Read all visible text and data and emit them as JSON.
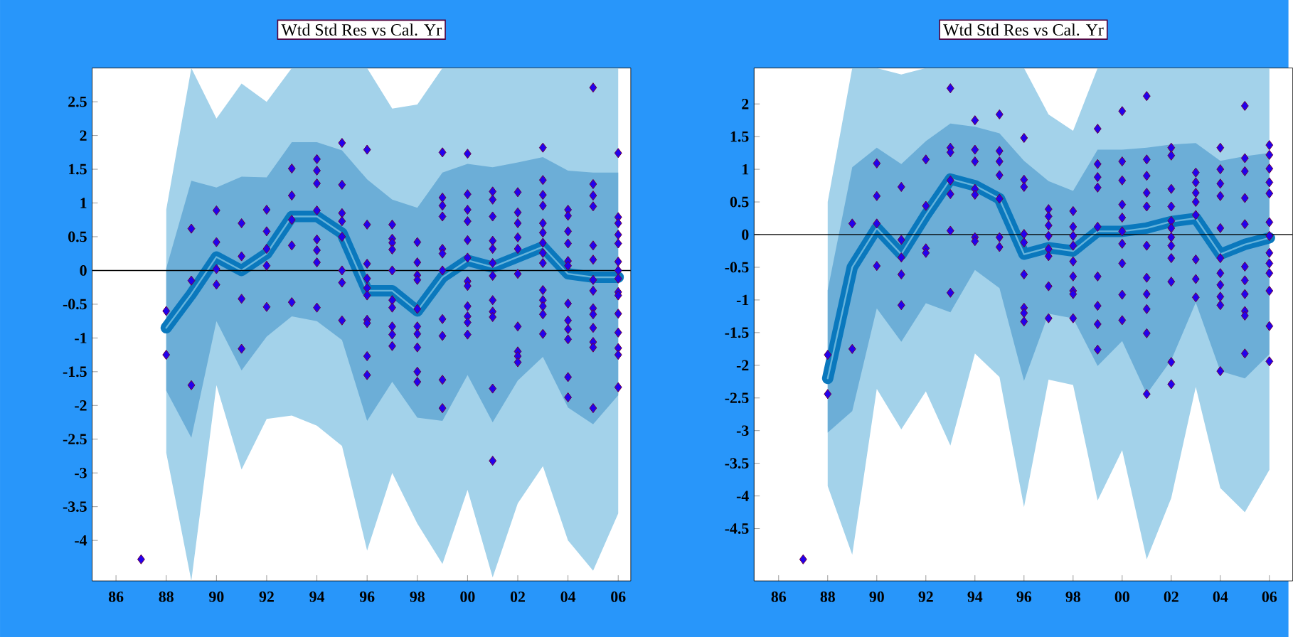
{
  "chart_data": [
    {
      "type": "scatter",
      "title": "Wtd Std Res vs Cal. Yr",
      "xlim": [
        1985.05,
        2006.5
      ],
      "ylim": [
        -4.6,
        3.0
      ],
      "xticks": [
        {
          "value": 1986,
          "label": "86"
        },
        {
          "value": 1988,
          "label": "88"
        },
        {
          "value": 1990,
          "label": "90"
        },
        {
          "value": 1992,
          "label": "92"
        },
        {
          "value": 1994,
          "label": "94"
        },
        {
          "value": 1996,
          "label": "96"
        },
        {
          "value": 1998,
          "label": "98"
        },
        {
          "value": 2000,
          "label": "00"
        },
        {
          "value": 2002,
          "label": "02"
        },
        {
          "value": 2004,
          "label": "04"
        },
        {
          "value": 2006,
          "label": "06"
        }
      ],
      "yticks": [
        -4,
        -3.5,
        -3,
        -2.5,
        -2,
        -1.5,
        -1,
        -0.5,
        0,
        0.5,
        1,
        1.5,
        2,
        2.5
      ],
      "ref_lines": [
        {
          "axis": "y",
          "value": 0,
          "color": "#000000"
        }
      ],
      "series": [
        {
          "type": "line",
          "color": "#66b4dc",
          "x": [
            1988,
            1989,
            1990,
            1991,
            1992,
            1993,
            1994,
            1995,
            1996,
            1997,
            1998,
            1999,
            2000,
            2001,
            2002,
            2003,
            2004,
            2005,
            2006
          ],
          "values": [
            -0.85,
            -0.35,
            0.2,
            0.0,
            0.25,
            0.8,
            0.8,
            0.55,
            -0.3,
            -0.3,
            -0.6,
            -0.1,
            0.15,
            0.05,
            0.2,
            0.35,
            -0.05,
            -0.1,
            -0.1
          ],
          "upper": [
            0.9,
            3.0,
            2.25,
            2.77,
            2.5,
            3.0,
            3.0,
            3.0,
            3.0,
            2.4,
            2.46,
            3.0,
            3.0,
            3.0,
            3.0,
            3.0,
            3.0,
            3.0,
            3.0
          ],
          "lower": [
            -2.7,
            -4.6,
            -1.7,
            -2.95,
            -2.2,
            -2.15,
            -2.3,
            -2.6,
            -4.15,
            -3.0,
            -3.75,
            -4.35,
            -3.25,
            -4.55,
            -3.45,
            -2.9,
            -4.0,
            -4.45,
            -3.6
          ]
        },
        {
          "type": "line",
          "color": "#0a78bd",
          "x": [
            1988,
            1989,
            1990,
            1991,
            1992,
            1993,
            1994,
            1995,
            1996,
            1997,
            1998,
            1999,
            2000,
            2001,
            2002,
            2003,
            2004,
            2005,
            2006
          ],
          "values": [
            -0.85,
            -0.35,
            0.2,
            0.0,
            0.25,
            0.8,
            0.8,
            0.55,
            -0.3,
            -0.3,
            -0.6,
            -0.1,
            0.15,
            0.05,
            0.2,
            0.35,
            -0.05,
            -0.1,
            -0.1
          ],
          "lower": [
            -1.78,
            -2.48,
            -0.75,
            -1.48,
            -0.98,
            -0.68,
            -0.75,
            -1.03,
            -2.23,
            -1.65,
            -2.18,
            -2.23,
            -1.55,
            -2.25,
            -1.63,
            -1.28,
            -2.03,
            -2.28,
            -1.85
          ],
          "upper": [
            0.03,
            1.33,
            1.23,
            1.39,
            1.38,
            1.9,
            1.9,
            1.78,
            1.35,
            1.05,
            0.93,
            1.45,
            1.58,
            1.53,
            1.6,
            1.68,
            1.48,
            1.45,
            1.45
          ]
        },
        {
          "color": "#2200ee",
          "marker": "diamond",
          "x": [
            1987,
            1988,
            1988,
            1989,
            1989,
            1989,
            1990,
            1990,
            1990,
            1990,
            1991,
            1991,
            1991,
            1991,
            1992,
            1992,
            1992,
            1992,
            1992,
            1993,
            1993,
            1993,
            1993,
            1993,
            1994,
            1994,
            1994,
            1994,
            1994,
            1994,
            1994,
            1994,
            1995,
            1995,
            1995,
            1995,
            1995,
            1995,
            1995,
            1995,
            1996,
            1996,
            1996,
            1996,
            1996,
            1996,
            1996,
            1996,
            1996,
            1996,
            1997,
            1997,
            1997,
            1997,
            1997,
            1997,
            1997,
            1997,
            1997,
            1997,
            1998,
            1998,
            1998,
            1998,
            1998,
            1998,
            1998,
            1998,
            1998,
            1998,
            1999,
            1999,
            1999,
            1999,
            1999,
            1999,
            1999,
            1999,
            1999,
            1999,
            1999,
            2000,
            2000,
            2000,
            2000,
            2000,
            2000,
            2000,
            2000,
            2000,
            2000,
            2000,
            2000,
            2001,
            2001,
            2001,
            2001,
            2001,
            2001,
            2001,
            2001,
            2001,
            2001,
            2001,
            2001,
            2002,
            2002,
            2002,
            2002,
            2002,
            2002,
            2002,
            2002,
            2002,
            2002,
            2003,
            2003,
            2003,
            2003,
            2003,
            2003,
            2003,
            2003,
            2003,
            2003,
            2003,
            2003,
            2003,
            2003,
            2004,
            2004,
            2004,
            2004,
            2004,
            2004,
            2004,
            2004,
            2004,
            2004,
            2004,
            2004,
            2005,
            2005,
            2005,
            2005,
            2005,
            2005,
            2005,
            2005,
            2005,
            2005,
            2005,
            2005,
            2005,
            2005,
            2006,
            2006,
            2006,
            2006,
            2006,
            2006,
            2006,
            2006,
            2006,
            2006,
            2006,
            2006,
            2006,
            2006,
            2006
          ],
          "values": [
            -4.28,
            -0.6,
            -1.25,
            0.62,
            -0.15,
            -1.7,
            0.89,
            0.42,
            0.02,
            -0.21,
            0.7,
            0.21,
            -0.42,
            -1.16,
            0.9,
            0.58,
            0.32,
            0.07,
            -0.54,
            1.51,
            1.11,
            0.75,
            0.37,
            -0.47,
            1.65,
            1.48,
            1.29,
            0.89,
            0.46,
            0.3,
            0.12,
            -0.55,
            1.89,
            1.27,
            0.85,
            0.73,
            0.5,
            0.0,
            -0.18,
            -0.74,
            1.79,
            0.68,
            0.1,
            -0.12,
            -0.26,
            -0.37,
            -0.73,
            -0.78,
            -1.27,
            -1.55,
            0.68,
            0.47,
            0.41,
            0.31,
            0.0,
            -0.44,
            -0.55,
            -0.83,
            -0.95,
            -1.12,
            0.42,
            0.12,
            -0.07,
            -0.14,
            -0.57,
            -0.83,
            -0.94,
            -1.14,
            -1.5,
            -1.65,
            1.75,
            1.08,
            0.96,
            0.8,
            0.32,
            0.25,
            0.0,
            -0.72,
            -0.97,
            -1.62,
            -2.04,
            1.73,
            1.13,
            0.9,
            0.73,
            0.45,
            0.19,
            -0.16,
            -0.23,
            -0.53,
            -0.68,
            -0.77,
            -0.95,
            1.17,
            1.05,
            0.8,
            0.44,
            0.32,
            0.11,
            -0.08,
            -0.44,
            -0.61,
            -0.69,
            -1.75,
            -2.82,
            1.16,
            0.86,
            0.7,
            0.49,
            0.32,
            -0.05,
            -0.83,
            -1.2,
            -1.27,
            -1.36,
            1.82,
            1.34,
            1.12,
            0.96,
            0.7,
            0.56,
            0.41,
            0.26,
            0.11,
            -0.29,
            -0.44,
            -0.53,
            -0.65,
            -0.94,
            0.9,
            0.81,
            0.58,
            0.4,
            0.14,
            0.07,
            -0.49,
            -0.74,
            -0.87,
            -1.02,
            -1.58,
            -1.88,
            2.71,
            1.28,
            1.11,
            0.95,
            0.37,
            0.16,
            -0.14,
            -0.3,
            -0.56,
            -0.65,
            -0.85,
            -1.06,
            -1.14,
            -2.04,
            1.74,
            0.79,
            0.7,
            0.53,
            0.4,
            0.13,
            0.0,
            -0.12,
            -0.32,
            -0.37,
            -0.64,
            -0.92,
            -1.15,
            -1.25,
            -1.73
          ]
        }
      ]
    },
    {
      "type": "scatter",
      "title": "Wtd Std Res vs Cal. Yr",
      "xlim": [
        1985.0,
        2006.95
      ],
      "ylim": [
        -5.3,
        2.55
      ],
      "xticks": [
        {
          "value": 1986,
          "label": "86"
        },
        {
          "value": 1988,
          "label": "88"
        },
        {
          "value": 1990,
          "label": "90"
        },
        {
          "value": 1992,
          "label": "92"
        },
        {
          "value": 1994,
          "label": "94"
        },
        {
          "value": 1996,
          "label": "96"
        },
        {
          "value": 1998,
          "label": "98"
        },
        {
          "value": 2000,
          "label": "00"
        },
        {
          "value": 2002,
          "label": "02"
        },
        {
          "value": 2004,
          "label": "04"
        },
        {
          "value": 2006,
          "label": "06"
        }
      ],
      "yticks": [
        -4.5,
        -4,
        -3.5,
        -3,
        -2.5,
        -2,
        -1.5,
        -1,
        -0.5,
        0,
        0.5,
        1,
        1.5,
        2
      ],
      "ref_lines": [
        {
          "axis": "y",
          "value": 0,
          "color": "#000000"
        }
      ],
      "series": [
        {
          "type": "line",
          "color": "#66b4dc",
          "x": [
            1988,
            1989,
            1990,
            1991,
            1992,
            1993,
            1994,
            1995,
            1996,
            1997,
            1998,
            1999,
            2000,
            2001,
            2002,
            2003,
            2004,
            2005,
            2006
          ],
          "values": [
            -2.2,
            -0.5,
            0.1,
            -0.3,
            0.3,
            0.85,
            0.75,
            0.55,
            -0.3,
            -0.2,
            -0.25,
            0.05,
            0.05,
            0.1,
            0.2,
            0.25,
            -0.3,
            -0.15,
            -0.05
          ],
          "upper": [
            0.5,
            2.55,
            2.55,
            2.45,
            2.55,
            2.55,
            2.55,
            2.55,
            2.55,
            1.84,
            1.59,
            2.55,
            2.55,
            2.55,
            2.55,
            2.55,
            2.55,
            2.55,
            2.55
          ],
          "lower": [
            -3.85,
            -4.9,
            -2.36,
            -2.98,
            -2.4,
            -3.23,
            -1.82,
            -2.18,
            -4.17,
            -2.22,
            -2.3,
            -4.07,
            -3.3,
            -4.97,
            -4.03,
            -2.33,
            -3.88,
            -4.25,
            -3.6
          ]
        },
        {
          "type": "line",
          "color": "#0a78bd",
          "x": [
            1988,
            1989,
            1990,
            1991,
            1992,
            1993,
            1994,
            1995,
            1996,
            1997,
            1998,
            1999,
            2000,
            2001,
            2002,
            2003,
            2004,
            2005,
            2006
          ],
          "values": [
            -2.2,
            -0.5,
            0.1,
            -0.3,
            0.3,
            0.85,
            0.75,
            0.55,
            -0.3,
            -0.2,
            -0.25,
            0.05,
            0.05,
            0.1,
            0.2,
            0.25,
            -0.3,
            -0.15,
            -0.05
          ],
          "lower": [
            -3.03,
            -2.7,
            -1.13,
            -1.64,
            -1.05,
            -1.19,
            -0.54,
            -0.82,
            -2.24,
            -1.21,
            -1.28,
            -2.01,
            -1.63,
            -2.44,
            -1.92,
            -1.04,
            -2.09,
            -2.2,
            -1.83
          ],
          "upper": [
            -0.85,
            1.03,
            1.33,
            1.08,
            1.43,
            1.7,
            1.65,
            1.55,
            1.13,
            0.82,
            0.67,
            1.3,
            1.3,
            1.33,
            1.38,
            1.4,
            1.13,
            1.2,
            1.25
          ]
        },
        {
          "color": "#2200ee",
          "marker": "diamond",
          "x": [
            1987,
            1988,
            1988,
            1989,
            1989,
            1990,
            1990,
            1990,
            1990,
            1991,
            1991,
            1991,
            1991,
            1991,
            1992,
            1992,
            1992,
            1992,
            1993,
            1993,
            1993,
            1993,
            1993,
            1993,
            1993,
            1994,
            1994,
            1994,
            1994,
            1994,
            1994,
            1994,
            1995,
            1995,
            1995,
            1995,
            1995,
            1995,
            1995,
            1996,
            1996,
            1996,
            1996,
            1996,
            1996,
            1996,
            1996,
            1996,
            1997,
            1997,
            1997,
            1997,
            1997,
            1997,
            1997,
            1997,
            1998,
            1998,
            1998,
            1998,
            1998,
            1998,
            1998,
            1998,
            1998,
            1999,
            1999,
            1999,
            1999,
            1999,
            1999,
            1999,
            1999,
            1999,
            2000,
            2000,
            2000,
            2000,
            2000,
            2000,
            2000,
            2000,
            2000,
            2000,
            2001,
            2001,
            2001,
            2001,
            2001,
            2001,
            2001,
            2001,
            2001,
            2001,
            2001,
            2002,
            2002,
            2002,
            2002,
            2002,
            2002,
            2002,
            2002,
            2002,
            2002,
            2002,
            2002,
            2003,
            2003,
            2003,
            2003,
            2003,
            2003,
            2003,
            2003,
            2004,
            2004,
            2004,
            2004,
            2004,
            2004,
            2004,
            2004,
            2004,
            2004,
            2004,
            2005,
            2005,
            2005,
            2005,
            2005,
            2005,
            2005,
            2005,
            2005,
            2005,
            2005,
            2006,
            2006,
            2006,
            2006,
            2006,
            2006,
            2006,
            2006,
            2006,
            2006,
            2006,
            2006,
            2006
          ],
          "values": [
            -4.97,
            -1.84,
            -2.44,
            0.17,
            -1.75,
            1.09,
            0.59,
            0.17,
            -0.48,
            0.73,
            -0.08,
            -0.35,
            -0.61,
            -1.08,
            1.15,
            0.44,
            -0.21,
            -0.28,
            2.24,
            1.33,
            1.26,
            0.83,
            0.62,
            0.06,
            -0.89,
            1.75,
            1.3,
            1.12,
            0.7,
            0.61,
            -0.04,
            -0.1,
            1.84,
            1.28,
            1.12,
            0.91,
            0.55,
            -0.04,
            -0.19,
            1.48,
            0.84,
            0.73,
            0.01,
            -0.12,
            -0.61,
            -1.12,
            -1.2,
            -1.33,
            0.39,
            0.28,
            0.14,
            -0.02,
            -0.22,
            -0.33,
            -0.79,
            -1.28,
            0.36,
            0.12,
            -0.02,
            -0.17,
            -0.41,
            -0.64,
            -0.86,
            -0.91,
            -1.28,
            1.62,
            1.08,
            0.88,
            0.72,
            0.12,
            -0.64,
            -1.09,
            -1.37,
            -1.76,
            1.89,
            1.12,
            0.83,
            0.46,
            0.26,
            0.05,
            -0.14,
            -0.44,
            -0.92,
            -1.31,
            2.12,
            1.15,
            0.9,
            0.64,
            0.43,
            -0.17,
            -0.66,
            -0.91,
            -1.14,
            -1.51,
            -2.44,
            1.33,
            1.21,
            0.7,
            0.43,
            0.21,
            0.1,
            -0.04,
            -0.17,
            -0.36,
            -0.72,
            -1.95,
            -2.29,
            0.95,
            0.8,
            0.64,
            0.5,
            0.3,
            -0.38,
            -0.68,
            -0.96,
            1.33,
            1.0,
            0.78,
            0.59,
            0.1,
            -0.36,
            -0.59,
            -0.77,
            -0.95,
            -1.08,
            -2.09,
            1.97,
            1.17,
            0.97,
            0.56,
            0.16,
            -0.49,
            -0.7,
            -0.91,
            -1.17,
            -1.24,
            -1.82,
            1.37,
            1.22,
            1.01,
            0.8,
            0.63,
            0.19,
            -0.02,
            -0.28,
            -0.44,
            -0.59,
            -0.86,
            -1.4,
            -1.94
          ]
        }
      ]
    }
  ]
}
